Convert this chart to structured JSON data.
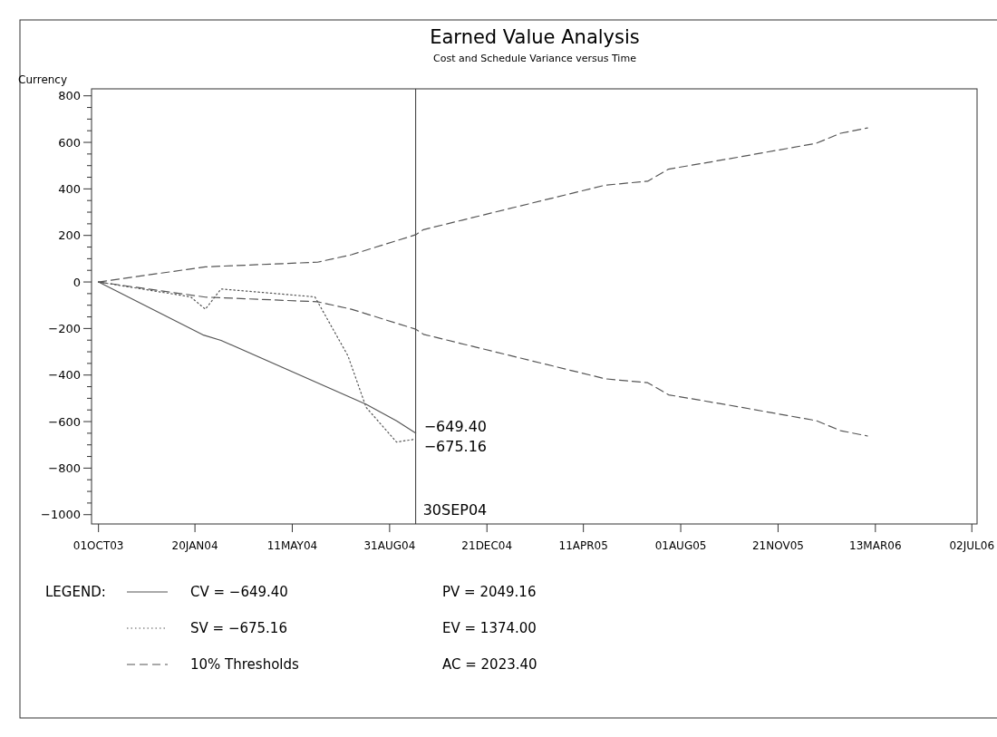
{
  "chart_data": {
    "type": "line",
    "title": "Earned Value Analysis",
    "subtitle": "Cost and Schedule Variance versus Time",
    "ylabel": "Currency",
    "legend_title": "LEGEND:",
    "legend": "bottom",
    "xlim": [
      "2003-09-23",
      "2006-07-08"
    ],
    "xticks": [
      {
        "value": "2003-10-01",
        "label": "01OCT03"
      },
      {
        "value": "2004-01-20",
        "label": "20JAN04"
      },
      {
        "value": "2004-05-11",
        "label": "11MAY04"
      },
      {
        "value": "2004-08-31",
        "label": "31AUG04"
      },
      {
        "value": "2004-12-21",
        "label": "21DEC04"
      },
      {
        "value": "2005-04-11",
        "label": "11APR05"
      },
      {
        "value": "2005-08-01",
        "label": "01AUG05"
      },
      {
        "value": "2005-11-21",
        "label": "21NOV05"
      },
      {
        "value": "2006-03-13",
        "label": "13MAR06"
      },
      {
        "value": "2006-07-02",
        "label": "02JUL06"
      }
    ],
    "ylim": [
      -1040,
      830
    ],
    "yticks": [
      -1000,
      {
        "value": -950,
        "label": null
      },
      {
        "value": -900,
        "label": null
      },
      {
        "value": -850,
        "label": null
      },
      -800,
      {
        "value": -750,
        "label": null
      },
      {
        "value": -700,
        "label": null
      },
      {
        "value": -650,
        "label": null
      },
      -600,
      {
        "value": -550,
        "label": null
      },
      {
        "value": -500,
        "label": null
      },
      {
        "value": -450,
        "label": null
      },
      -400,
      {
        "value": -350,
        "label": null
      },
      {
        "value": -300,
        "label": null
      },
      {
        "value": -250,
        "label": null
      },
      -200,
      {
        "value": -150,
        "label": null
      },
      {
        "value": -100,
        "label": null
      },
      {
        "value": -50,
        "label": null
      },
      0,
      {
        "value": 50,
        "label": null
      },
      {
        "value": 100,
        "label": null
      },
      {
        "value": 150,
        "label": null
      },
      200,
      {
        "value": 250,
        "label": null
      },
      {
        "value": 300,
        "label": null
      },
      {
        "value": 350,
        "label": null
      },
      400,
      {
        "value": 450,
        "label": null
      },
      {
        "value": 500,
        "label": null
      },
      {
        "value": 550,
        "label": null
      },
      600,
      {
        "value": 650,
        "label": null
      },
      {
        "value": 700,
        "label": null
      },
      {
        "value": 750,
        "label": null
      },
      800
    ],
    "grid": false,
    "series": [
      {
        "name": "CV = −649.40",
        "color": "#555555",
        "line_style": "solid",
        "x": [
          "2003-10-01",
          "2004-01-29",
          "2004-02-19",
          "2004-08-04",
          "2004-09-08",
          "2004-09-30"
        ],
        "values": [
          0,
          -227,
          -251,
          -526,
          -597,
          -649.4
        ]
      },
      {
        "name": "SV = −675.16",
        "color": "#555555",
        "line_style": "dotted",
        "x": [
          "2003-10-01",
          "2004-01-15",
          "2004-02-01",
          "2004-02-19",
          "2004-06-06",
          "2004-07-14",
          "2004-08-04",
          "2004-09-08",
          "2004-09-30"
        ],
        "values": [
          0,
          -64,
          -117,
          -30,
          -64,
          -317,
          -539,
          -688,
          -675.16
        ]
      },
      {
        "name": "10% Thresholds",
        "color": "#555555",
        "line_style": "dashed",
        "x": [
          "2003-10-01",
          "2004-02-01",
          "2004-06-09",
          "2004-07-18",
          "2004-09-30",
          "2004-10-09",
          "2005-05-06",
          "2005-06-24",
          "2005-07-18",
          "2005-09-22",
          "2006-01-04",
          "2006-02-01",
          "2006-03-04"
        ],
        "values": [
          0,
          65,
          85,
          117,
          203,
          225,
          416,
          433,
          485,
          527,
          596,
          639,
          662
        ]
      },
      {
        "color": "#555555",
        "line_style": "dashed",
        "x": [
          "2003-10-01",
          "2004-02-01",
          "2004-06-09",
          "2004-07-18",
          "2004-09-30",
          "2004-10-09",
          "2005-05-06",
          "2005-06-24",
          "2005-07-18",
          "2005-09-22",
          "2006-01-04",
          "2006-02-01",
          "2006-03-04"
        ],
        "values": [
          0,
          -65,
          -85,
          -117,
          -203,
          -225,
          -416,
          -433,
          -485,
          -527,
          -596,
          -639,
          -662
        ]
      }
    ],
    "ref_lines": [
      {
        "axis": "x",
        "value": "2004-09-30",
        "label": "30SEP04",
        "color": "#333333"
      }
    ],
    "annotations": [
      {
        "text": "−649.40",
        "x": "2004-09-30",
        "y": -649.4
      },
      {
        "text": "−675.16",
        "x": "2004-09-30",
        "y": -675.16
      },
      "PV = 2049.16",
      "EV = 1374.00",
      "AC = 2023.40"
    ]
  }
}
